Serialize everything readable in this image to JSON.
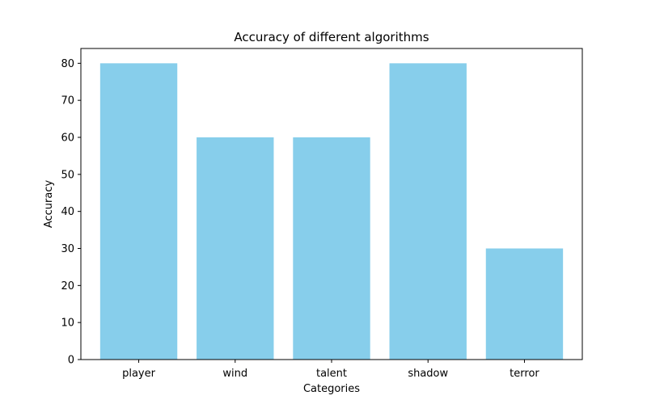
{
  "chart_data": {
    "type": "bar",
    "title": "Accuracy of different algorithms",
    "xlabel": "Categories",
    "ylabel": "Accuracy",
    "categories": [
      "player",
      "wind",
      "talent",
      "shadow",
      "terror"
    ],
    "values": [
      80,
      60,
      60,
      80,
      30
    ],
    "ylim": [
      0,
      84
    ],
    "yticks": [
      0,
      10,
      20,
      30,
      40,
      50,
      60,
      70,
      80
    ],
    "bar_color": "#87ceeb",
    "grid": false,
    "legend": "none"
  }
}
